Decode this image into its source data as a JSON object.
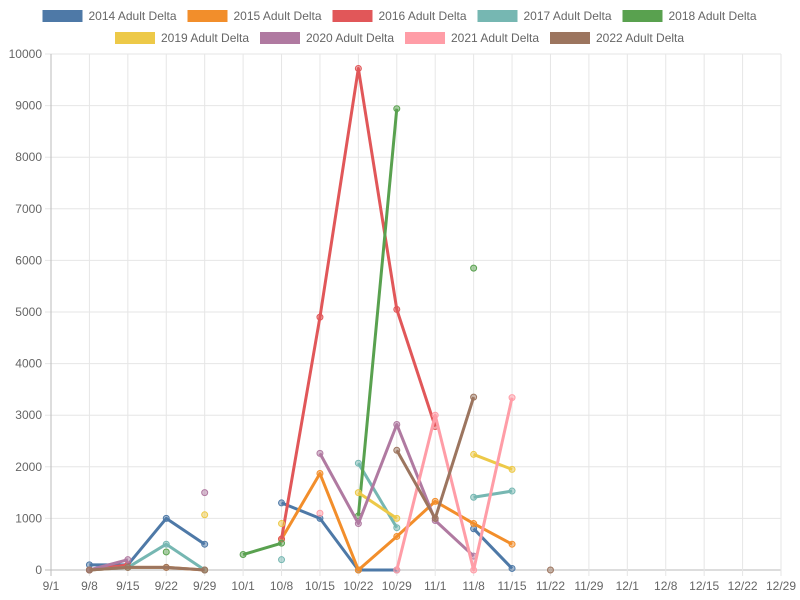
{
  "chart_data": {
    "type": "line",
    "x_categories": [
      "9/1",
      "9/8",
      "9/15",
      "9/22",
      "9/29",
      "10/1",
      "10/8",
      "10/15",
      "10/22",
      "10/29",
      "11/1",
      "11/8",
      "11/15",
      "11/22",
      "11/29",
      "12/1",
      "12/8",
      "12/15",
      "12/22",
      "12/29"
    ],
    "ylim": [
      0,
      10000
    ],
    "y_ticks": [
      0,
      1000,
      2000,
      3000,
      4000,
      5000,
      6000,
      7000,
      8000,
      9000,
      10000
    ],
    "grid": true,
    "legend_position": "top",
    "title": "",
    "xlabel": "",
    "ylabel": "",
    "series": [
      {
        "name": "2014 Adult Delta",
        "color": "#4e79a7",
        "values": [
          null,
          100,
          100,
          1000,
          500,
          null,
          1300,
          1000,
          0,
          0,
          null,
          800,
          30,
          null,
          null,
          null,
          null,
          null,
          null,
          null
        ]
      },
      {
        "name": "2015 Adult Delta",
        "color": "#f28e2b",
        "values": [
          null,
          0,
          50,
          50,
          0,
          null,
          600,
          1870,
          0,
          650,
          1330,
          900,
          500,
          null,
          null,
          null,
          null,
          null,
          null,
          null
        ]
      },
      {
        "name": "2016 Adult Delta",
        "color": "#e15759",
        "values": [
          null,
          0,
          100,
          null,
          null,
          null,
          600,
          4900,
          9720,
          5050,
          2780,
          null,
          null,
          null,
          null,
          null,
          null,
          null,
          null,
          null
        ]
      },
      {
        "name": "2017 Adult Delta",
        "color": "#76b7b2",
        "values": [
          null,
          0,
          50,
          500,
          0,
          null,
          200,
          null,
          2070,
          820,
          null,
          1410,
          1530,
          null,
          null,
          null,
          null,
          null,
          null,
          null
        ]
      },
      {
        "name": "2018 Adult Delta",
        "color": "#59a14f",
        "values": [
          null,
          null,
          null,
          350,
          null,
          300,
          520,
          null,
          1050,
          8940,
          null,
          5850,
          null,
          null,
          null,
          null,
          null,
          null,
          null,
          null
        ]
      },
      {
        "name": "2019 Adult Delta",
        "color": "#edc948",
        "values": [
          null,
          null,
          null,
          null,
          1070,
          null,
          900,
          null,
          1500,
          1000,
          null,
          2240,
          1950,
          null,
          null,
          null,
          null,
          null,
          null,
          null
        ]
      },
      {
        "name": "2020 Adult Delta",
        "color": "#b07aa1",
        "values": [
          null,
          0,
          200,
          null,
          1500,
          null,
          null,
          2260,
          900,
          2820,
          960,
          270,
          null,
          null,
          null,
          null,
          null,
          null,
          null,
          null
        ]
      },
      {
        "name": "2021 Adult Delta",
        "color": "#ff9da7",
        "values": [
          null,
          null,
          null,
          null,
          null,
          null,
          null,
          1100,
          null,
          0,
          3000,
          0,
          3340,
          null,
          null,
          null,
          null,
          null,
          null,
          null
        ]
      },
      {
        "name": "2022 Adult Delta",
        "color": "#9c755f",
        "values": [
          null,
          0,
          50,
          50,
          0,
          null,
          null,
          null,
          null,
          2320,
          1000,
          3350,
          null,
          0,
          null,
          null,
          null,
          null,
          null,
          null
        ]
      }
    ]
  }
}
